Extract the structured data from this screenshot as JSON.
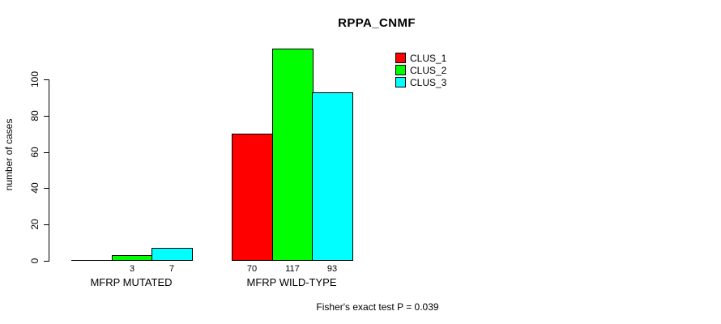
{
  "chart_data": {
    "type": "bar",
    "title": "RPPA_CNMF",
    "ylabel": "number of cases",
    "xlabel": "",
    "categories": [
      "MFRP MUTATED",
      "MFRP WILD-TYPE"
    ],
    "series": [
      {
        "name": "CLUS_1",
        "color": "#ff0000",
        "values": [
          0,
          70
        ]
      },
      {
        "name": "CLUS_2",
        "color": "#00ff00",
        "values": [
          3,
          117
        ]
      },
      {
        "name": "CLUS_3",
        "color": "#00ffff",
        "values": [
          7,
          93
        ]
      }
    ],
    "value_labels": [
      [
        "",
        "3",
        "7"
      ],
      [
        "70",
        "117",
        "93"
      ]
    ],
    "yticks": [
      0,
      20,
      40,
      60,
      80,
      100
    ],
    "ylim": [
      0,
      117
    ],
    "grid": false,
    "legend_position": "top-right",
    "annotation": "Fisher's exact test P = 0.039",
    "colors": {
      "background": "#ffffff",
      "axis": "#000000",
      "bar_border": "#000000"
    }
  }
}
